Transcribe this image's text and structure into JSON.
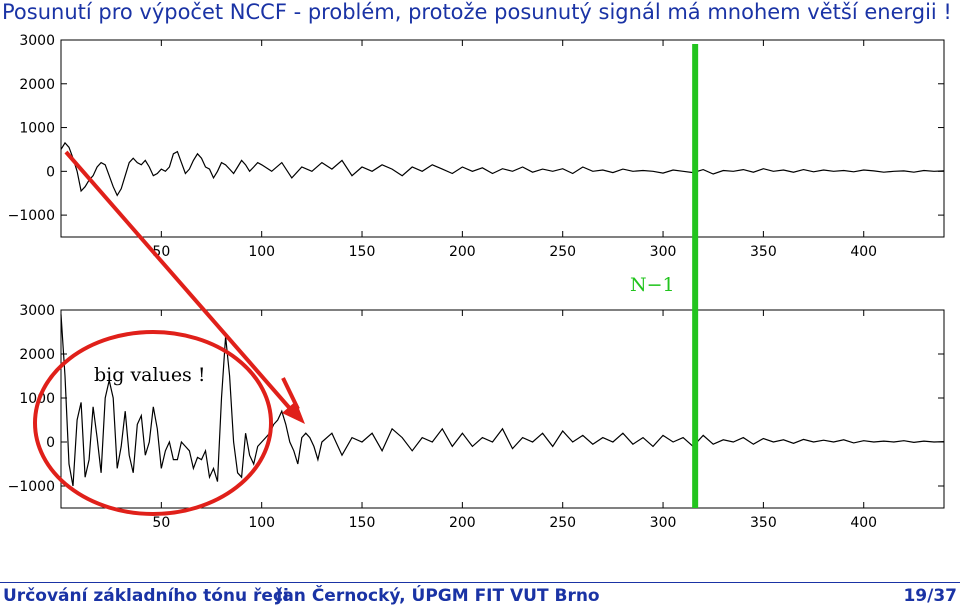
{
  "slide": {
    "title": "Posunutí pro výpočet NCCF - problém, protože posunutý signál má mnohem větší energii !"
  },
  "footer": {
    "left": "Určování základního tónu řeči",
    "middle": "Jan Černocký, ÚPGM FIT VUT Brno",
    "page": "19/37"
  },
  "annotations": {
    "circle_label": "big values !",
    "lag_label": "N−1",
    "lag_value": 316,
    "circle_color": "#e0201a",
    "arrow_color": "#e0201a",
    "lag_line_color": "#22c41e"
  },
  "chart_data": [
    {
      "type": "line",
      "xlim": [
        0,
        440
      ],
      "ylim": [
        -1500,
        3000
      ],
      "xticks": [
        50,
        100,
        150,
        200,
        250,
        300,
        350,
        400
      ],
      "yticks": [
        3000,
        2000,
        1000,
        0,
        -1000
      ],
      "ytick_labels": [
        "3000",
        "2000",
        "1000",
        "0",
        "−1000"
      ],
      "series": [
        {
          "x": [
            0,
            2,
            4,
            6,
            8,
            10,
            12,
            14,
            16,
            18,
            20,
            22,
            24,
            26,
            28,
            30,
            32,
            34,
            36,
            38,
            40,
            42,
            44,
            46,
            48,
            50,
            52,
            54,
            56,
            58,
            60,
            62,
            64,
            66,
            68,
            70,
            72,
            74,
            76,
            78,
            80,
            82,
            84,
            86,
            88,
            90,
            92,
            94,
            96,
            98,
            100,
            105,
            110,
            115,
            120,
            125,
            130,
            135,
            140,
            145,
            150,
            155,
            160,
            165,
            170,
            175,
            180,
            185,
            190,
            195,
            200,
            205,
            210,
            215,
            220,
            225,
            230,
            235,
            240,
            245,
            250,
            255,
            260,
            265,
            270,
            275,
            280,
            285,
            290,
            295,
            300,
            305,
            310,
            315,
            320,
            325,
            330,
            335,
            340,
            345,
            350,
            355,
            360,
            365,
            370,
            375,
            380,
            385,
            390,
            395,
            400,
            405,
            410,
            415,
            420,
            425,
            430,
            435,
            440
          ],
          "y": [
            500,
            650,
            550,
            300,
            0,
            -450,
            -350,
            -200,
            -100,
            100,
            200,
            150,
            -100,
            -350,
            -550,
            -400,
            -100,
            200,
            300,
            200,
            150,
            250,
            100,
            -100,
            -50,
            50,
            0,
            100,
            400,
            450,
            200,
            -50,
            50,
            250,
            400,
            300,
            100,
            50,
            -150,
            0,
            200,
            150,
            50,
            -50,
            100,
            250,
            150,
            0,
            100,
            200,
            150,
            0,
            200,
            -150,
            100,
            0,
            200,
            50,
            250,
            -100,
            100,
            0,
            150,
            50,
            -100,
            100,
            0,
            150,
            50,
            -50,
            100,
            0,
            80,
            -50,
            60,
            0,
            100,
            -20,
            50,
            0,
            60,
            -50,
            100,
            0,
            30,
            -30,
            50,
            0,
            20,
            0,
            -40,
            30,
            0,
            -30,
            40,
            -60,
            20,
            0,
            40,
            -20,
            60,
            0,
            30,
            -20,
            40,
            -10,
            30,
            0,
            20,
            -10,
            30,
            10,
            -20,
            0,
            10,
            -20,
            20,
            0,
            10
          ]
        }
      ]
    },
    {
      "type": "line",
      "xlim": [
        0,
        440
      ],
      "ylim": [
        -1500,
        3000
      ],
      "xticks": [
        50,
        100,
        150,
        200,
        250,
        300,
        350,
        400
      ],
      "yticks": [
        3000,
        2000,
        1000,
        0,
        -1000
      ],
      "ytick_labels": [
        "3000",
        "2000",
        "1000",
        "0",
        "−1000"
      ],
      "series": [
        {
          "x": [
            0,
            2,
            4,
            6,
            8,
            10,
            12,
            14,
            16,
            18,
            20,
            22,
            24,
            26,
            28,
            30,
            32,
            34,
            36,
            38,
            40,
            42,
            44,
            46,
            48,
            50,
            52,
            54,
            56,
            58,
            60,
            62,
            64,
            66,
            68,
            70,
            72,
            74,
            76,
            78,
            80,
            82,
            84,
            86,
            88,
            90,
            92,
            94,
            96,
            98,
            100,
            102,
            104,
            106,
            108,
            110,
            112,
            114,
            116,
            118,
            120,
            122,
            124,
            126,
            128,
            130,
            135,
            140,
            145,
            150,
            155,
            160,
            165,
            170,
            175,
            180,
            185,
            190,
            195,
            200,
            205,
            210,
            215,
            220,
            225,
            230,
            235,
            240,
            245,
            250,
            255,
            260,
            265,
            270,
            275,
            280,
            285,
            290,
            295,
            300,
            305,
            310,
            315,
            320,
            325,
            330,
            335,
            340,
            345,
            350,
            355,
            360,
            365,
            370,
            375,
            380,
            385,
            390,
            395,
            400,
            405,
            410,
            415,
            420,
            425,
            430,
            435,
            440
          ],
          "y": [
            2900,
            1500,
            -500,
            -1000,
            500,
            900,
            -800,
            -400,
            800,
            100,
            -700,
            1000,
            1400,
            1000,
            -600,
            -100,
            700,
            -300,
            -700,
            400,
            600,
            -300,
            0,
            800,
            300,
            -600,
            -200,
            0,
            -400,
            -400,
            0,
            -100,
            -200,
            -600,
            -350,
            -400,
            -200,
            -800,
            -600,
            -900,
            1000,
            2400,
            1500,
            0,
            -700,
            -800,
            200,
            -300,
            -500,
            -100,
            0,
            100,
            200,
            400,
            500,
            700,
            400,
            0,
            -200,
            -500,
            100,
            200,
            100,
            -100,
            -400,
            0,
            200,
            -300,
            100,
            0,
            200,
            -200,
            300,
            100,
            -200,
            100,
            0,
            300,
            -100,
            200,
            -100,
            100,
            0,
            300,
            -150,
            100,
            0,
            200,
            -100,
            250,
            0,
            150,
            -50,
            100,
            0,
            200,
            -50,
            100,
            -100,
            150,
            0,
            100,
            -100,
            150,
            -50,
            50,
            0,
            100,
            -50,
            80,
            0,
            50,
            -30,
            60,
            0,
            40,
            0,
            50,
            -20,
            30,
            0,
            20,
            0,
            30,
            -10,
            20,
            0,
            10
          ]
        }
      ]
    }
  ]
}
